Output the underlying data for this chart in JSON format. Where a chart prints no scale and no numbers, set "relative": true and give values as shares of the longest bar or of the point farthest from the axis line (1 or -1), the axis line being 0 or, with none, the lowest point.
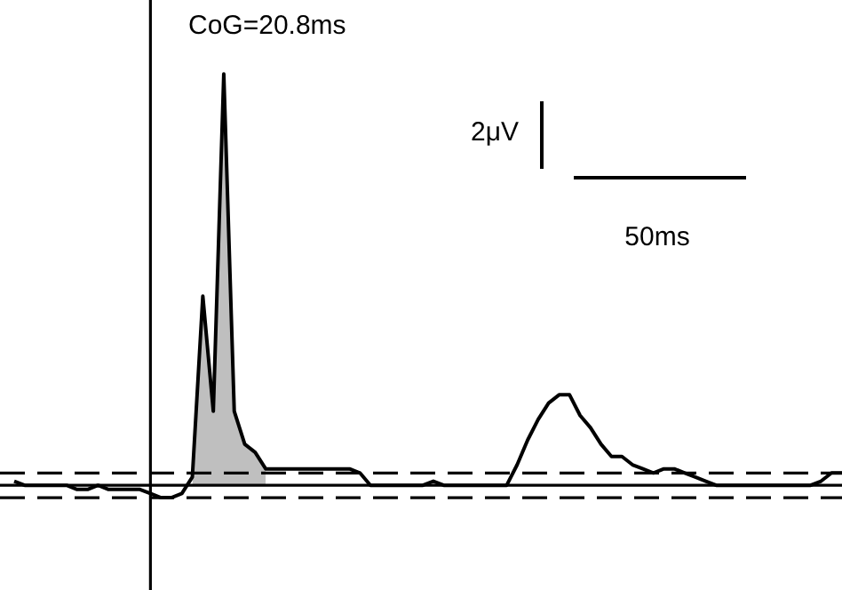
{
  "chart_data": {
    "type": "line",
    "relative": true,
    "tick_labels": false,
    "legend": false,
    "marker": "none",
    "line_style": "solid",
    "categories": [
      null,
      null,
      null,
      null,
      null,
      null,
      null,
      null,
      null,
      null,
      null,
      null,
      null,
      null,
      null,
      null,
      null,
      null,
      null,
      null,
      null,
      null,
      null,
      null,
      null,
      null,
      null,
      null,
      null,
      null,
      null,
      null,
      null,
      null,
      null,
      null,
      null,
      null,
      null,
      null,
      null,
      null,
      null,
      null,
      null,
      null,
      null,
      null,
      null,
      null,
      null,
      null,
      null,
      null,
      null,
      null,
      null,
      null,
      null,
      null,
      null,
      null,
      null,
      null,
      null,
      null,
      null,
      null,
      null,
      null,
      null,
      null,
      null,
      null,
      null,
      null,
      null,
      null,
      null,
      null
    ],
    "annotations": [
      "CoG=20.8ms",
      "2μV",
      "50ms"
    ],
    "ref_lines": [
      {
        "axis": "y",
        "value": 0.03,
        "line_style": "dashed",
        "color": "#000000"
      },
      {
        "axis": "y",
        "value": -0.03,
        "line_style": "dashed",
        "color": "#000000"
      },
      {
        "axis": "y",
        "value": 0,
        "line_style": "solid",
        "color": "#000000"
      }
    ],
    "series": [
      {
        "type": "area",
        "color": "#bfbfbf",
        "values": [
          null,
          null,
          null,
          null,
          null,
          null,
          null,
          null,
          null,
          null,
          null,
          null,
          null,
          null,
          null,
          null,
          null,
          0.02,
          0.46,
          0.18,
          1.0,
          0.18,
          0.1,
          0.08,
          0.04,
          null,
          null,
          null,
          null,
          null,
          null,
          null,
          null,
          null,
          null,
          null,
          null,
          null,
          null,
          null,
          null,
          null,
          null,
          null,
          null,
          null,
          null,
          null,
          null,
          null,
          null,
          null,
          null,
          null,
          null,
          null,
          null,
          null,
          null,
          null,
          null,
          null,
          null,
          null,
          null,
          null,
          null,
          null,
          null,
          null,
          null,
          null,
          null,
          null,
          null,
          null,
          null,
          null,
          null,
          null
        ]
      },
      {
        "type": "line",
        "color": "#000000",
        "values": [
          0.01,
          0,
          0,
          0,
          0,
          0,
          -0.01,
          -0.01,
          0,
          -0.01,
          -0.01,
          -0.01,
          -0.01,
          -0.02,
          -0.03,
          -0.03,
          -0.02,
          0.02,
          0.46,
          0.18,
          1.0,
          0.18,
          0.1,
          0.08,
          0.04,
          0.04,
          0.04,
          0.04,
          0.04,
          0.04,
          0.04,
          0.04,
          0.04,
          0.03,
          0,
          0,
          0,
          0,
          0,
          0,
          0.01,
          0,
          0,
          0,
          0,
          0,
          0,
          0,
          0.05,
          0.11,
          0.16,
          0.2,
          0.22,
          0.22,
          0.17,
          0.14,
          0.1,
          0.07,
          0.07,
          0.05,
          0.04,
          0.03,
          0.04,
          0.04,
          0.03,
          0.02,
          0.01,
          0,
          0,
          0,
          0,
          0,
          0,
          0,
          0,
          0,
          0,
          0.01,
          0.03,
          0.03
        ]
      }
    ]
  }
}
